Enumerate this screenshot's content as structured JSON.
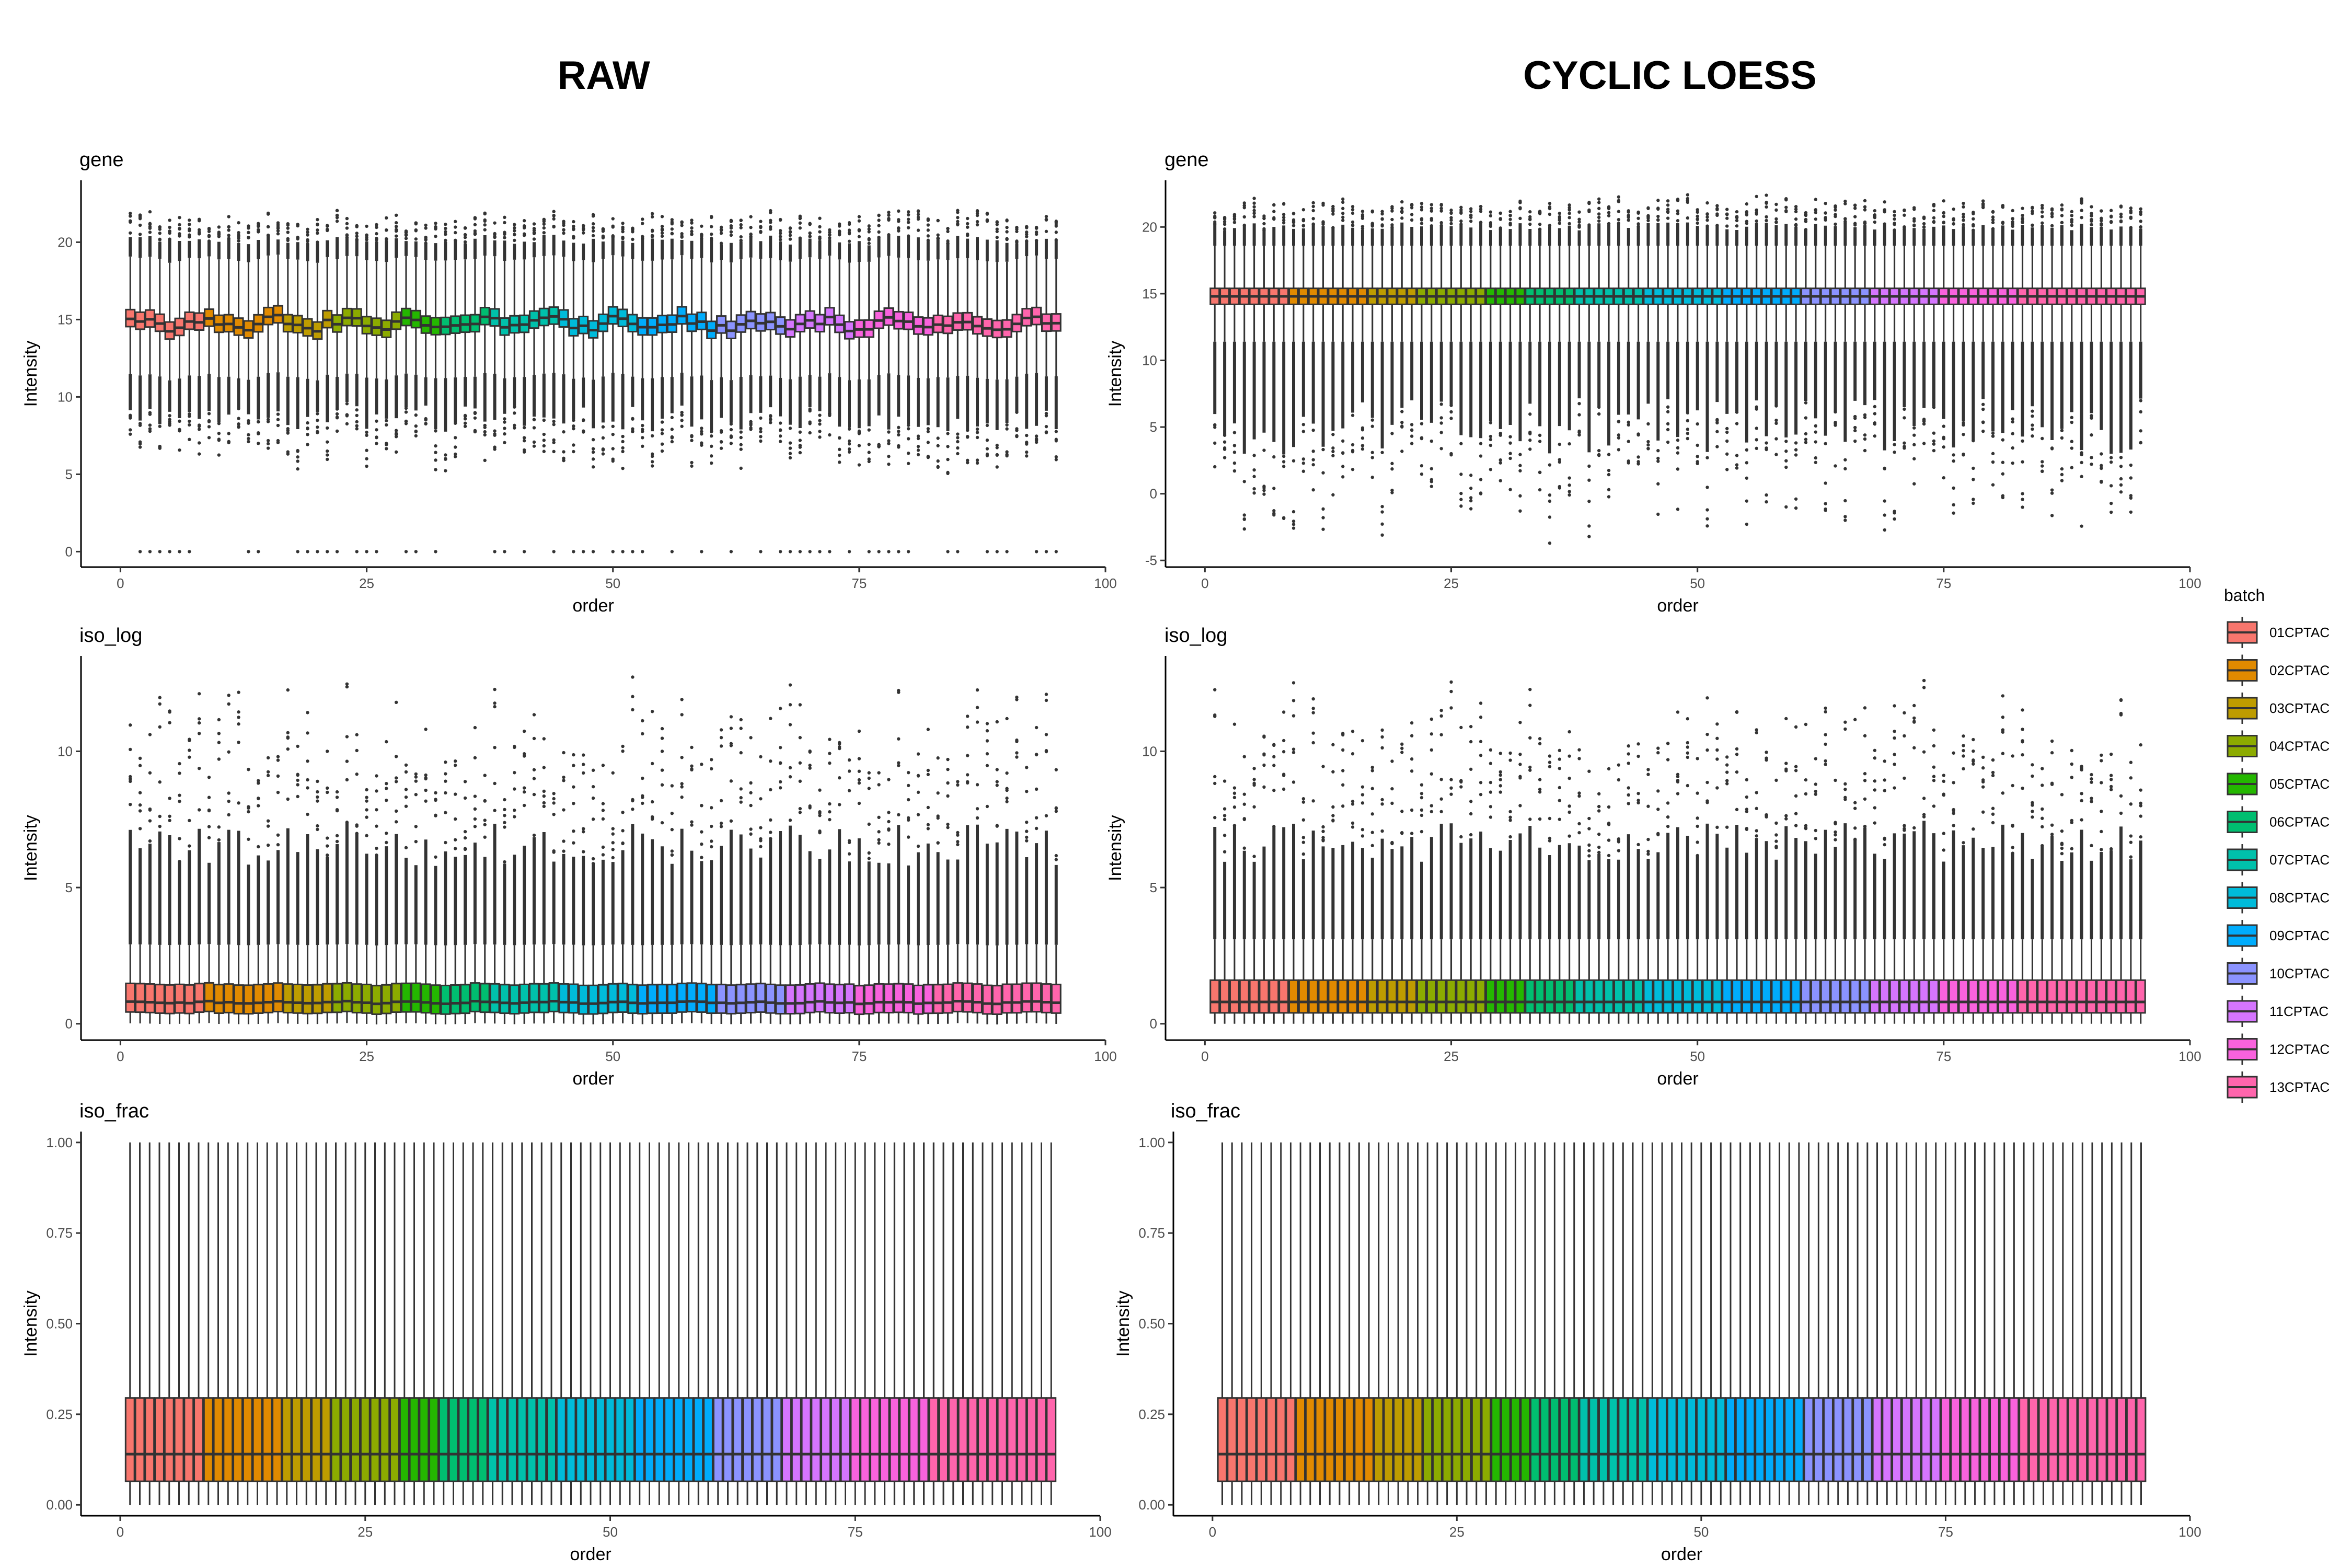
{
  "column_titles": [
    "RAW",
    "CYCLIC LOESS"
  ],
  "legend": {
    "title": "batch",
    "items": [
      {
        "label": "01CPTAC",
        "color": "#F8766D"
      },
      {
        "label": "02CPTAC",
        "color": "#E18A00"
      },
      {
        "label": "03CPTAC",
        "color": "#BE9C00"
      },
      {
        "label": "04CPTAC",
        "color": "#8CAB00"
      },
      {
        "label": "05CPTAC",
        "color": "#24B700"
      },
      {
        "label": "06CPTAC",
        "color": "#00BE70"
      },
      {
        "label": "07CPTAC",
        "color": "#00C1AB"
      },
      {
        "label": "08CPTAC",
        "color": "#00BBDA"
      },
      {
        "label": "09CPTAC",
        "color": "#00ACFC"
      },
      {
        "label": "10CPTAC",
        "color": "#8B93FF"
      },
      {
        "label": "11CPTAC",
        "color": "#D575FE"
      },
      {
        "label": "12CPTAC",
        "color": "#F962DD"
      },
      {
        "label": "13CPTAC",
        "color": "#FF65AC"
      }
    ]
  },
  "chart_data": [
    {
      "type": "boxplot",
      "panel": "RAW",
      "title": "gene",
      "xlabel": "order",
      "ylabel": "Intensity",
      "xlim": [
        -4,
        100
      ],
      "xticks": [
        0,
        25,
        50,
        75,
        100
      ],
      "ylim": [
        -1,
        24
      ],
      "yticks": [
        0,
        5,
        10,
        15,
        20
      ],
      "n_samples": 95,
      "batch_boundaries": [
        1,
        9,
        17,
        22,
        29,
        33,
        38,
        45,
        53,
        61,
        68,
        75,
        83,
        96
      ],
      "median": 14.7,
      "q1": 14.2,
      "q3": 15.3,
      "whisker_low": 11.3,
      "whisker_high": 18.9,
      "median_variation": 0.55,
      "outlier_high_max": 22.2,
      "outlier_low_min": 4.9,
      "outlier_zero": 0
    },
    {
      "type": "boxplot",
      "panel": "CYCLIC LOESS",
      "title": "gene",
      "xlabel": "order",
      "ylabel": "Intensity",
      "xlim": [
        -4,
        100
      ],
      "xticks": [
        0,
        25,
        50,
        75,
        100
      ],
      "ylim": [
        -5.5,
        23.5
      ],
      "yticks": [
        -5,
        0,
        5,
        10,
        15,
        20
      ],
      "n_samples": 95,
      "batch_boundaries": [
        1,
        9,
        17,
        22,
        29,
        33,
        38,
        45,
        53,
        61,
        68,
        75,
        83,
        96
      ],
      "median": 14.8,
      "q1": 14.2,
      "q3": 15.4,
      "whisker_low": 11.4,
      "whisker_high": 18.6,
      "median_variation": 0.0,
      "outlier_high_max": 22.5,
      "outlier_low_min": -4.0
    },
    {
      "type": "boxplot",
      "panel": "RAW",
      "title": "iso_log",
      "xlabel": "order",
      "ylabel": "Intensity",
      "xlim": [
        -4,
        100
      ],
      "xticks": [
        0,
        25,
        50,
        75,
        100
      ],
      "ylim": [
        -0.6,
        13.5
      ],
      "yticks": [
        0,
        5,
        10
      ],
      "n_samples": 95,
      "batch_boundaries": [
        1,
        9,
        17,
        22,
        29,
        33,
        38,
        45,
        53,
        61,
        68,
        75,
        83,
        96
      ],
      "median": 0.78,
      "q1": 0.4,
      "q3": 1.45,
      "whisker_low": 0.0,
      "whisker_high": 2.9,
      "median_variation": 0.05,
      "outlier_high_max": 12.8
    },
    {
      "type": "boxplot",
      "panel": "CYCLIC LOESS",
      "title": "iso_log",
      "xlabel": "order",
      "ylabel": "Intensity",
      "xlim": [
        -4,
        100
      ],
      "xticks": [
        0,
        25,
        50,
        75,
        100
      ],
      "ylim": [
        -0.6,
        13.5
      ],
      "yticks": [
        0,
        5,
        10
      ],
      "n_samples": 95,
      "batch_boundaries": [
        1,
        9,
        17,
        22,
        29,
        33,
        38,
        45,
        53,
        61,
        68,
        75,
        83,
        96
      ],
      "median": 0.8,
      "q1": 0.4,
      "q3": 1.6,
      "whisker_low": 0.0,
      "whisker_high": 3.1,
      "median_variation": 0.0,
      "outlier_high_max": 12.8
    },
    {
      "type": "boxplot",
      "panel": "RAW",
      "title": "iso_frac",
      "xlabel": "order",
      "ylabel": "Intensity",
      "xlim": [
        -4,
        100
      ],
      "xticks": [
        0,
        25,
        50,
        75,
        100
      ],
      "ylim": [
        -0.03,
        1.03
      ],
      "yticks": [
        0.0,
        0.25,
        0.5,
        0.75,
        1.0
      ],
      "ytick_labels": [
        "0.00",
        "0.25",
        "0.50",
        "0.75",
        "1.00"
      ],
      "n_samples": 95,
      "batch_boundaries": [
        1,
        9,
        17,
        22,
        29,
        33,
        38,
        45,
        53,
        61,
        68,
        75,
        83,
        96
      ],
      "median": 0.14,
      "q1": 0.065,
      "q3": 0.295,
      "whisker_low": 0.0,
      "whisker_high": 1.0,
      "median_variation": 0.0
    },
    {
      "type": "boxplot",
      "panel": "CYCLIC LOESS",
      "title": "iso_frac",
      "xlabel": "order",
      "ylabel": "Intensity",
      "xlim": [
        -4,
        100
      ],
      "xticks": [
        0,
        25,
        50,
        75,
        100
      ],
      "ylim": [
        -0.03,
        1.03
      ],
      "yticks": [
        0.0,
        0.25,
        0.5,
        0.75,
        1.0
      ],
      "ytick_labels": [
        "0.00",
        "0.25",
        "0.50",
        "0.75",
        "1.00"
      ],
      "n_samples": 95,
      "batch_boundaries": [
        1,
        9,
        17,
        22,
        29,
        33,
        38,
        45,
        53,
        61,
        68,
        75,
        83,
        96
      ],
      "median": 0.14,
      "q1": 0.065,
      "q3": 0.295,
      "whisker_low": 0.0,
      "whisker_high": 1.0,
      "median_variation": 0.0
    }
  ]
}
